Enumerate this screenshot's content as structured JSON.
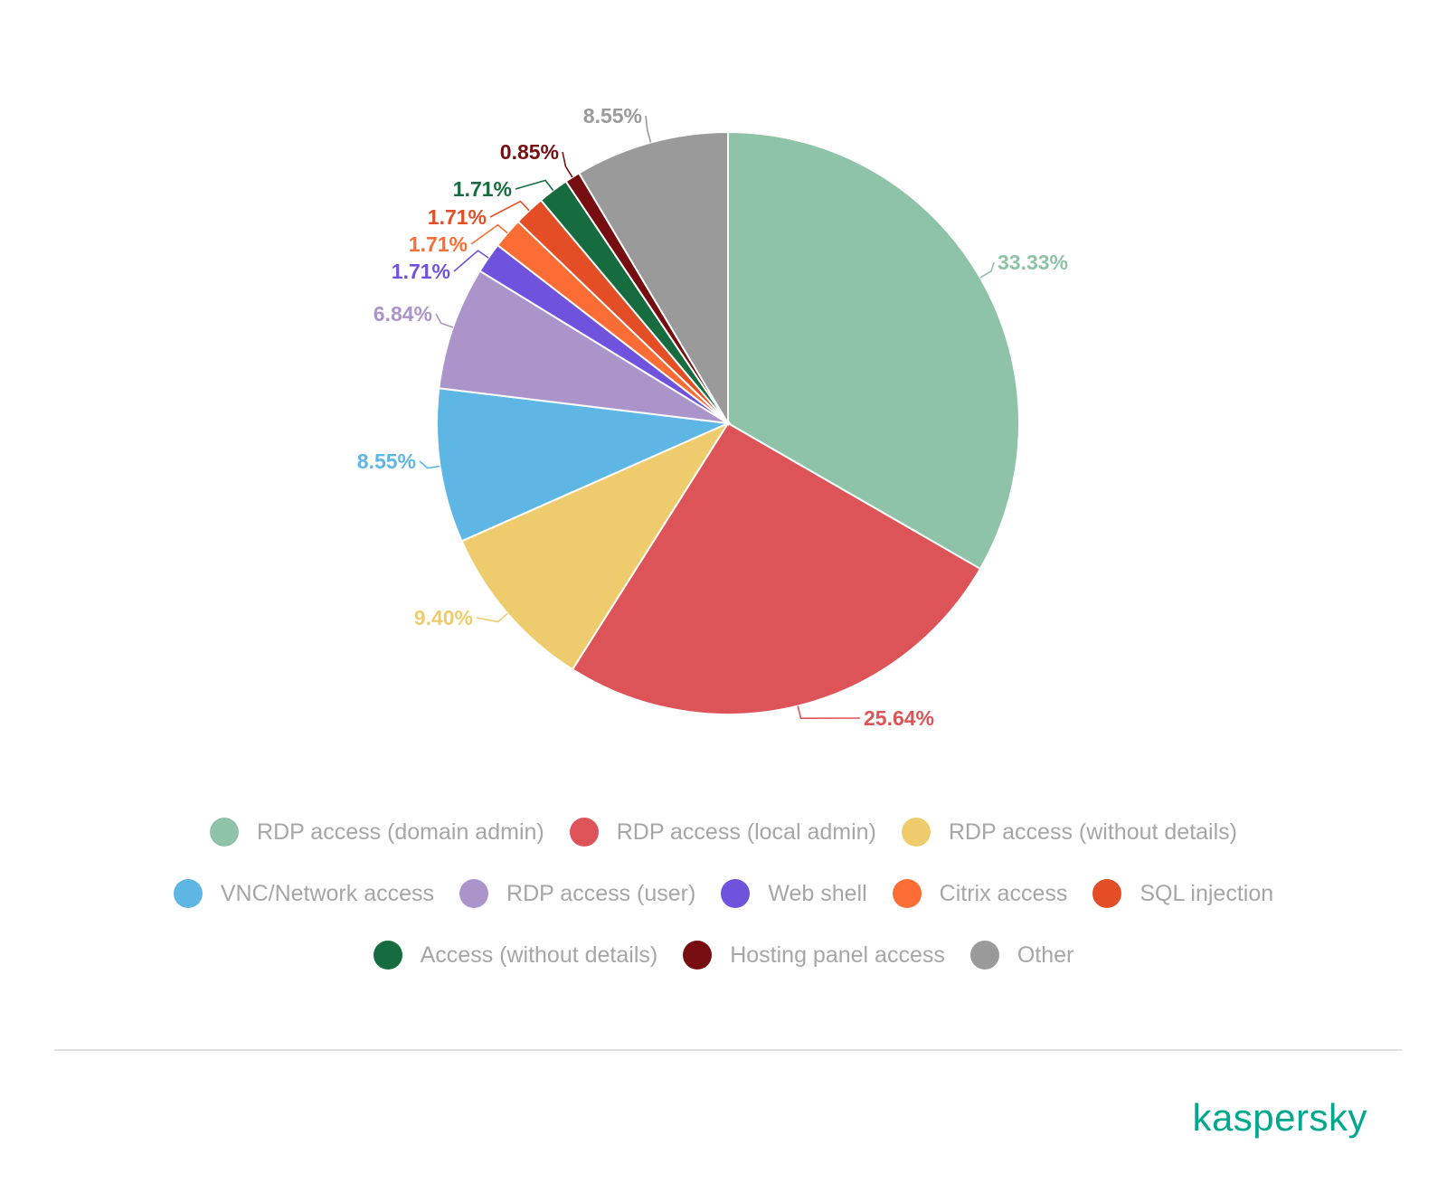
{
  "chart_data": {
    "type": "pie",
    "title": "",
    "categories": [
      "RDP access (domain admin)",
      "RDP access (local admin)",
      "RDP access (without details)",
      "VNC/Network access",
      "RDP access (user)",
      "Web shell",
      "Citrix access",
      "SQL injection",
      "Access (without details)",
      "Hosting panel access",
      "Other"
    ],
    "values": [
      33.33,
      25.64,
      9.4,
      8.55,
      6.84,
      1.71,
      1.71,
      1.71,
      1.71,
      0.85,
      8.55
    ],
    "labels": [
      "33.33%",
      "25.64%",
      "9.40%",
      "8.55%",
      "6.84%",
      "1.71%",
      "1.71%",
      "1.71%",
      "1.71%",
      "0.85%",
      "8.55%"
    ],
    "colors": [
      "#8fc3a7",
      "#dd5458",
      "#eecc6d",
      "#5eb6e4",
      "#ab94c9",
      "#6f53dc",
      "#fc6d36",
      "#e44e26",
      "#166c3e",
      "#760d10",
      "#9a9a9a"
    ],
    "legend_placement": "bottom",
    "start_angle": "12 o'clock, clockwise"
  },
  "brand": {
    "logo_text": "kaspersky",
    "logo_color": "#00a88e"
  }
}
